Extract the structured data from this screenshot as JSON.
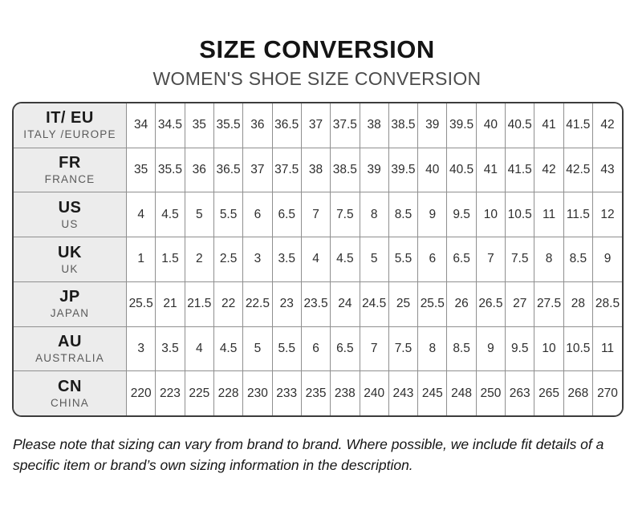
{
  "header": {
    "title": "SIZE CONVERSION",
    "subtitle": "WOMEN'S SHOE SIZE CONVERSION"
  },
  "table": {
    "rows": [
      {
        "code": "IT/ EU",
        "region": "ITALY /EUROPE",
        "values": [
          "34",
          "34.5",
          "35",
          "35.5",
          "36",
          "36.5",
          "37",
          "37.5",
          "38",
          "38.5",
          "39",
          "39.5",
          "40",
          "40.5",
          "41",
          "41.5",
          "42"
        ]
      },
      {
        "code": "FR",
        "region": "FRANCE",
        "values": [
          "35",
          "35.5",
          "36",
          "36.5",
          "37",
          "37.5",
          "38",
          "38.5",
          "39",
          "39.5",
          "40",
          "40.5",
          "41",
          "41.5",
          "42",
          "42.5",
          "43"
        ]
      },
      {
        "code": "US",
        "region": "US",
        "values": [
          "4",
          "4.5",
          "5",
          "5.5",
          "6",
          "6.5",
          "7",
          "7.5",
          "8",
          "8.5",
          "9",
          "9.5",
          "10",
          "10.5",
          "11",
          "11.5",
          "12"
        ]
      },
      {
        "code": "UK",
        "region": "UK",
        "values": [
          "1",
          "1.5",
          "2",
          "2.5",
          "3",
          "3.5",
          "4",
          "4.5",
          "5",
          "5.5",
          "6",
          "6.5",
          "7",
          "7.5",
          "8",
          "8.5",
          "9"
        ]
      },
      {
        "code": "JP",
        "region": "JAPAN",
        "values": [
          "25.5",
          "21",
          "21.5",
          "22",
          "22.5",
          "23",
          "23.5",
          "24",
          "24.5",
          "25",
          "25.5",
          "26",
          "26.5",
          "27",
          "27.5",
          "28",
          "28.5"
        ]
      },
      {
        "code": "AU",
        "region": "AUSTRALIA",
        "values": [
          "3",
          "3.5",
          "4",
          "4.5",
          "5",
          "5.5",
          "6",
          "6.5",
          "7",
          "7.5",
          "8",
          "8.5",
          "9",
          "9.5",
          "10",
          "10.5",
          "11"
        ]
      },
      {
        "code": "CN",
        "region": "CHINA",
        "values": [
          "220",
          "223",
          "225",
          "228",
          "230",
          "233",
          "235",
          "238",
          "240",
          "243",
          "245",
          "248",
          "250",
          "263",
          "265",
          "268",
          "270"
        ]
      }
    ]
  },
  "footer": {
    "note": "Please note that sizing can vary from brand to brand. Where possible, we include fit details of a specific item or brand’s own sizing information in the description."
  },
  "colors": {
    "label_bg": "#ececec",
    "grid_line": "#8f8f8f",
    "outer_border": "#3c3c3c",
    "title": "#141414",
    "subtitle": "#4b4b4b"
  }
}
